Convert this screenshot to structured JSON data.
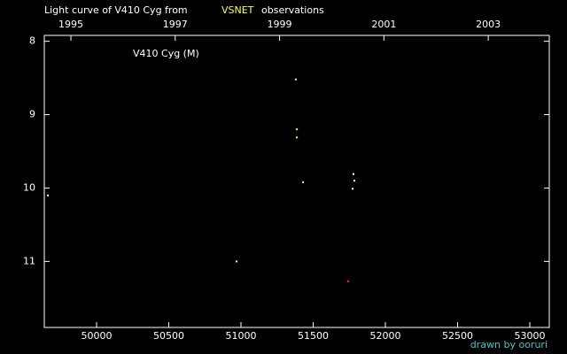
{
  "chart_data": {
    "type": "scatter",
    "title_parts": [
      "Light curve of V410 Cyg from",
      "VSNET",
      "observations"
    ],
    "label": "V410 Cyg (M)",
    "credit": "drawn by ooruri",
    "xlim": [
      49638,
      53135
    ],
    "xticks": [
      50000,
      50500,
      51000,
      51500,
      52000,
      52500,
      53000
    ],
    "x2lim": [
      1994.49,
      2004.17
    ],
    "x2ticks": [
      1995,
      1997,
      1999,
      2001,
      2003
    ],
    "ylim": [
      7.92,
      11.9
    ],
    "yticks": [
      8,
      9,
      10,
      11
    ],
    "series": [
      {
        "color": "#ffffff",
        "x": [
          49663,
          50969,
          51779,
          51785,
          51773
        ],
        "values": [
          10.1,
          11.0,
          9.81,
          9.9,
          10.01
        ]
      },
      {
        "color": "#ffff66",
        "x": [
          51380,
          51387,
          51387,
          51430
        ],
        "values": [
          8.52,
          9.2,
          9.31,
          9.92
        ]
      },
      {
        "color": "#ff3030",
        "x": [
          51742
        ],
        "values": [
          11.27
        ]
      }
    ]
  }
}
